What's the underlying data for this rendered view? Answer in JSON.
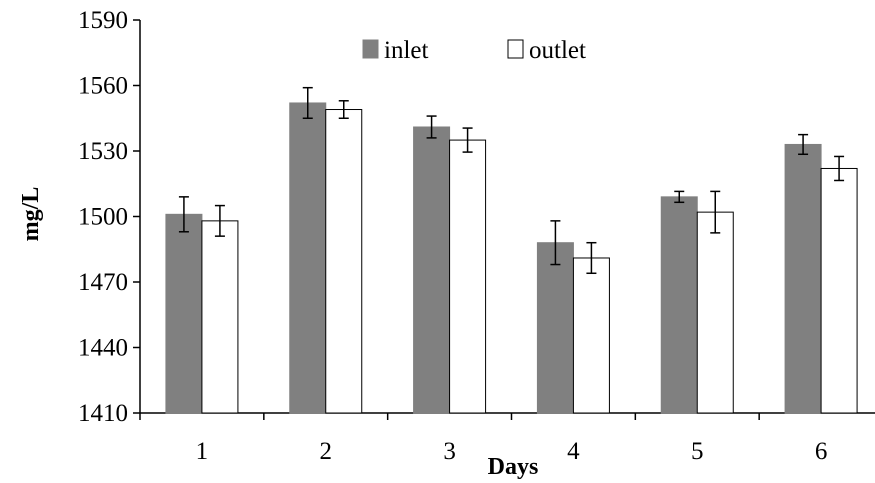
{
  "chart_data": {
    "type": "bar",
    "categories": [
      "1",
      "2",
      "3",
      "4",
      "5",
      "6"
    ],
    "series": [
      {
        "name": "inlet",
        "values": [
          1501,
          1552,
          1541,
          1488,
          1509,
          1533
        ],
        "errors": [
          8,
          7,
          5,
          10,
          2.5,
          4.5
        ],
        "color": "#808080"
      },
      {
        "name": "outlet",
        "values": [
          1498,
          1549,
          1535,
          1481,
          1502,
          1522
        ],
        "errors": [
          7,
          4,
          5.5,
          7,
          9.5,
          5.5
        ],
        "color": "#ffffff"
      }
    ],
    "xlabel": "Days",
    "ylabel": "mg/L",
    "ylim": [
      1410,
      1590
    ],
    "yticks": [
      1410,
      1440,
      1470,
      1500,
      1530,
      1560,
      1590
    ],
    "legend_position": "top-center",
    "grid": false
  }
}
